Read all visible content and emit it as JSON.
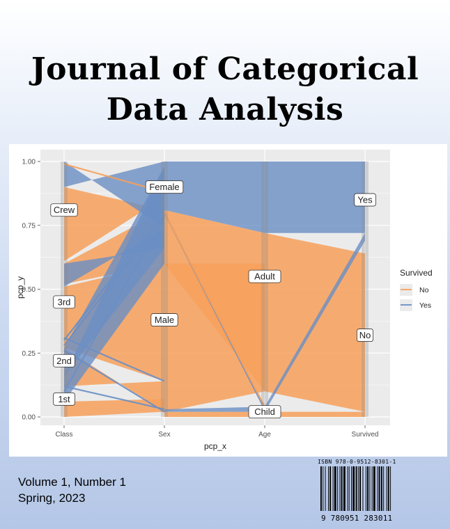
{
  "cover": {
    "title_line1": "Journal of Categorical",
    "title_line2": "Data Analysis",
    "volume": "Volume 1, Number 1",
    "date": "Spring, 2023",
    "isbn_text": "ISBN 978-0-9512-8301-1",
    "barcode_number": "9 780951 283011"
  },
  "colors": {
    "no": "#f7a05a",
    "yes": "#6a8fc4",
    "panel_bg": "#ebebeb",
    "grid": "#ffffff"
  },
  "chart_data": {
    "type": "parallel-sets",
    "xlabel": "pcp_x",
    "ylabel": "pcp_y",
    "x_categories": [
      "Class",
      "Sex",
      "Age",
      "Survived"
    ],
    "y_ticks": [
      "0.00",
      "0.25",
      "0.50",
      "0.75",
      "1.00"
    ],
    "ylim": [
      0,
      1
    ],
    "legend": {
      "title": "Survived",
      "entries": [
        "No",
        "Yes"
      ],
      "position": "right"
    },
    "axis_labels": [
      {
        "axis": "Class",
        "label": "Crew",
        "y": 0.81
      },
      {
        "axis": "Class",
        "label": "3rd",
        "y": 0.45
      },
      {
        "axis": "Class",
        "label": "2nd",
        "y": 0.22
      },
      {
        "axis": "Class",
        "label": "1st",
        "y": 0.07
      },
      {
        "axis": "Sex",
        "label": "Female",
        "y": 0.9
      },
      {
        "axis": "Sex",
        "label": "Male",
        "y": 0.38
      },
      {
        "axis": "Age",
        "label": "Adult",
        "y": 0.55
      },
      {
        "axis": "Age",
        "label": "Child",
        "y": 0.02
      },
      {
        "axis": "Survived",
        "label": "Yes",
        "y": 0.85
      },
      {
        "axis": "Survived",
        "label": "No",
        "y": 0.32
      }
    ],
    "ribbons": [
      {
        "from": [
          0,
          0.61,
          0.9
        ],
        "to": [
          1,
          0.86,
          0.81
        ],
        "status": "no"
      },
      {
        "from": [
          0,
          0.52,
          0.6
        ],
        "to": [
          1,
          0.6,
          0.81
        ],
        "status": "no"
      },
      {
        "from": [
          0,
          0.27,
          0.51
        ],
        "to": [
          1,
          0.14,
          0.6
        ],
        "status": "no"
      },
      {
        "from": [
          0,
          0.27,
          0.12
        ],
        "to": [
          1,
          0.02,
          0.14
        ],
        "status": "no"
      },
      {
        "from": [
          0,
          0.0,
          0.06
        ],
        "to": [
          1,
          0.02,
          0.07
        ],
        "status": "no"
      },
      {
        "from": [
          0,
          0.9,
          1.0
        ],
        "to": [
          1,
          1.0,
          0.74
        ],
        "status": "yes"
      },
      {
        "from": [
          0,
          0.51,
          0.6
        ],
        "to": [
          1,
          0.74,
          0.66
        ],
        "status": "yes"
      },
      {
        "from": [
          0,
          0.16,
          0.27
        ],
        "to": [
          1,
          0.66,
          0.98
        ],
        "status": "yes"
      },
      {
        "from": [
          0,
          0.06,
          0.16
        ],
        "to": [
          1,
          0.6,
          0.98
        ],
        "status": "yes"
      },
      {
        "from": [
          1,
          0.81,
          1.0
        ],
        "to": [
          2,
          0.72,
          1.0
        ],
        "status": "yes"
      },
      {
        "from": [
          1,
          0.6,
          0.81
        ],
        "to": [
          2,
          0.1,
          0.72
        ],
        "status": "no"
      },
      {
        "from": [
          1,
          0.02,
          0.6
        ],
        "to": [
          2,
          0.1,
          0.6
        ],
        "status": "no"
      },
      {
        "from": [
          1,
          0.0,
          0.02
        ],
        "to": [
          2,
          0.0,
          0.02
        ],
        "status": "no"
      },
      {
        "from": [
          1,
          0.02,
          0.03
        ],
        "to": [
          2,
          0.02,
          0.04
        ],
        "status": "yes"
      },
      {
        "from": [
          2,
          0.72,
          1.0
        ],
        "to": [
          3,
          0.72,
          1.0
        ],
        "status": "yes"
      },
      {
        "from": [
          2,
          0.1,
          0.72
        ],
        "to": [
          3,
          0.02,
          0.64
        ],
        "status": "no"
      },
      {
        "from": [
          2,
          0.0,
          0.02
        ],
        "to": [
          3,
          0.0,
          0.02
        ],
        "status": "no"
      },
      {
        "from": [
          2,
          0.02,
          0.04
        ],
        "to": [
          3,
          0.69,
          0.72
        ],
        "status": "yes"
      }
    ],
    "thin_lines": [
      {
        "from": [
          0,
          0.3
        ],
        "to": [
          1,
          0.81
        ],
        "status": "yes"
      },
      {
        "from": [
          0,
          0.28
        ],
        "to": [
          1,
          0.79
        ],
        "status": "yes"
      },
      {
        "from": [
          0,
          0.1
        ],
        "to": [
          1,
          0.78
        ],
        "status": "yes"
      },
      {
        "from": [
          0,
          0.12
        ],
        "to": [
          1,
          0.03
        ],
        "status": "yes"
      },
      {
        "from": [
          0,
          0.31
        ],
        "to": [
          1,
          0.14
        ],
        "status": "yes"
      },
      {
        "from": [
          0,
          0.26
        ],
        "to": [
          1,
          0.02
        ],
        "status": "yes"
      },
      {
        "from": [
          0,
          0.99
        ],
        "to": [
          1,
          0.88
        ],
        "status": "no"
      },
      {
        "from": [
          1,
          0.8
        ],
        "to": [
          2,
          0.03
        ],
        "status": "yes"
      },
      {
        "from": [
          1,
          0.8
        ],
        "to": [
          2,
          0.04
        ],
        "status": "no"
      }
    ]
  }
}
